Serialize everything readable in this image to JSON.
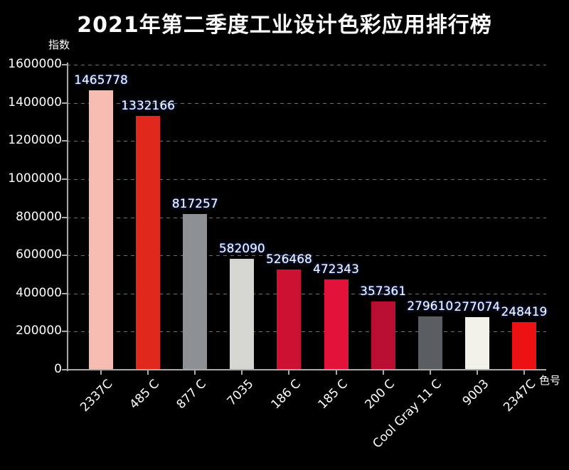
{
  "title": "2021年第二季度工业设计色彩应用排行榜",
  "chart_data": {
    "type": "bar",
    "title": "2021年第二季度工业设计色彩应用排行榜",
    "xlabel": "色号",
    "ylabel": "指数",
    "categories": [
      "2337C",
      "485 C",
      "877 C",
      "7035",
      "186 C",
      "185 C",
      "200 C",
      "Cool Gray 11 C",
      "9003",
      "2347C"
    ],
    "values": [
      1465778,
      1332166,
      817257,
      582090,
      526468,
      472343,
      357361,
      279610,
      277074,
      248419
    ],
    "value_labels": [
      "1465778",
      "1332166",
      "817257",
      "582090",
      "526468",
      "472343",
      "357361",
      "279610",
      "277074",
      "248419"
    ],
    "bar_colors": [
      "#f6bcb2",
      "#e0291c",
      "#8e9194",
      "#d5d6d2",
      "#cc1132",
      "#e3123a",
      "#b90d31",
      "#5a5d62",
      "#f2f1e9",
      "#ec1112"
    ],
    "ylim": [
      0,
      1600000
    ],
    "ytick_interval": 200000,
    "ytick_labels": [
      "0",
      "200000",
      "400000",
      "600000",
      "800000",
      "1000000",
      "1200000",
      "1400000",
      "1600000"
    ],
    "grid": "horizontal-dashed",
    "legend": "none",
    "xtick_rotation_deg": 45
  },
  "colors": {
    "background": "#000000",
    "title_text": "#ffffff",
    "tick_text": "#ffffff",
    "axis": "#a9a9a9",
    "gridline": "#6e6e6e",
    "value_label_text": "#ffffff",
    "value_label_glow": "#2546b4"
  }
}
